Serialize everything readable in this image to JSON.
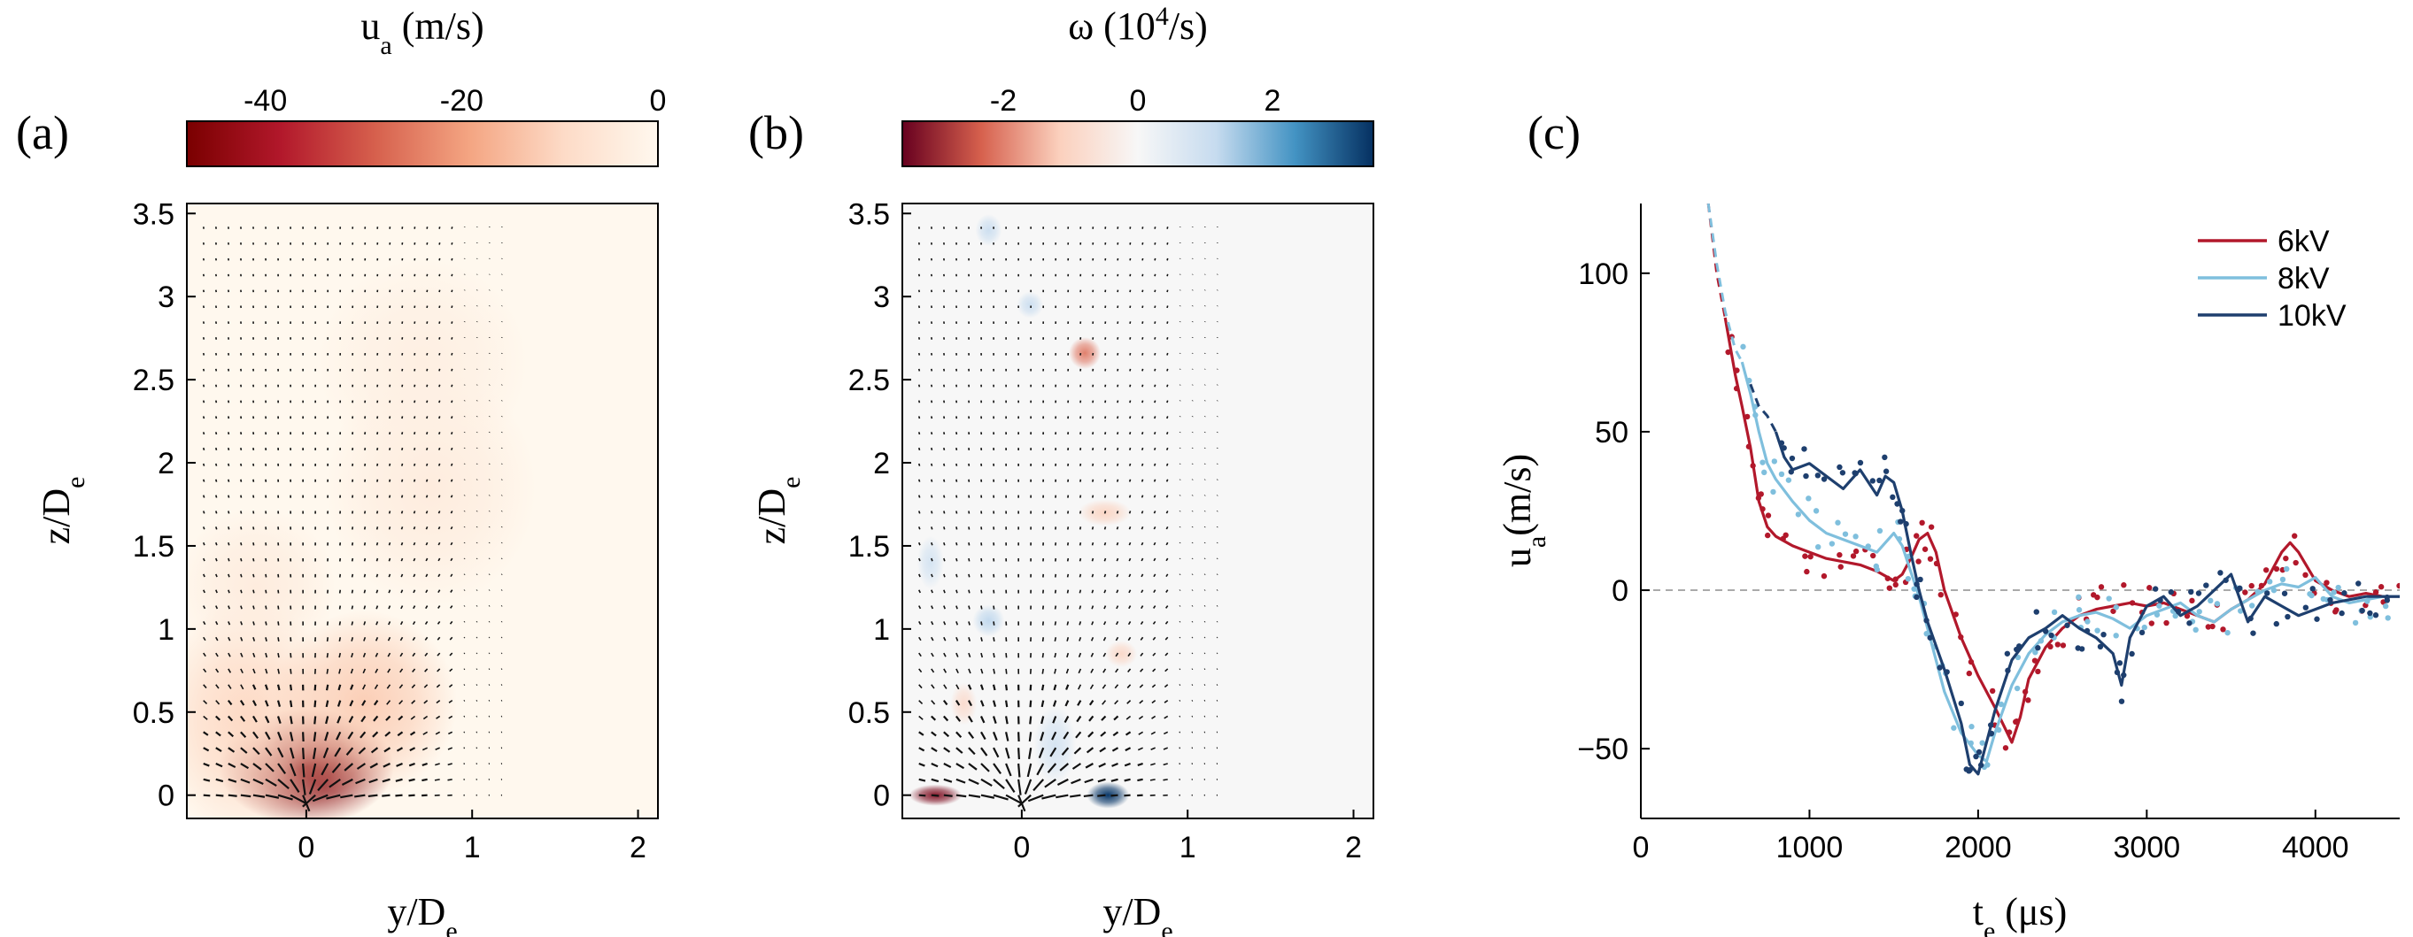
{
  "panel_labels": [
    "(a)",
    "(b)",
    "(c)"
  ],
  "chart_data": [
    {
      "type": "heatmap",
      "panel": "(a)",
      "colorbar": {
        "label_main": "u",
        "label_sub": "a",
        "label_rest": " (m/s)",
        "ticks": [
          "-40",
          "-20",
          "0"
        ],
        "tick_values": [
          -40,
          -20,
          0
        ],
        "range": [
          -48,
          0
        ],
        "colors": [
          "#7a0000",
          "#b2182b",
          "#d6604d",
          "#f4a582",
          "#fddbc7",
          "#fff8ee"
        ]
      },
      "xaxis": {
        "label_main": "y/D",
        "label_sub": "e",
        "range": [
          -0.72,
          2.12
        ],
        "ticks": [
          0,
          1,
          2
        ],
        "tick_labels": [
          "0",
          "1",
          "2"
        ]
      },
      "yaxis": {
        "label_main": "z/D",
        "label_sub": "e",
        "range": [
          -0.14,
          3.56
        ],
        "ticks": [
          0,
          0.5,
          1,
          1.5,
          2,
          2.5,
          3,
          3.5
        ],
        "tick_labels": [
          "0",
          "0.5",
          "1",
          "1.5",
          "2",
          "2.5",
          "3",
          "3.5"
        ]
      },
      "blobs": [
        {
          "y": 0.0,
          "z": 0.17,
          "sy": 0.33,
          "sz": 0.22,
          "value": -46
        },
        {
          "y": -0.35,
          "z": 0.45,
          "sy": 0.35,
          "sz": 0.45,
          "value": -10
        },
        {
          "y": 0.35,
          "z": 0.55,
          "sy": 0.35,
          "sz": 0.35,
          "value": -12
        },
        {
          "y": -0.3,
          "z": 1.25,
          "sy": 0.3,
          "sz": 0.3,
          "value": -4
        },
        {
          "y": 0.75,
          "z": 1.85,
          "sy": 0.4,
          "sz": 0.45,
          "value": -4
        },
        {
          "y": 0.7,
          "z": 2.6,
          "sy": 0.4,
          "sz": 0.4,
          "value": -3
        }
      ],
      "vector_field": "induced flow, vectors converging toward origin"
    },
    {
      "type": "heatmap",
      "panel": "(b)",
      "colorbar": {
        "label_main": "ω (10",
        "label_sup": "4",
        "label_rest": "/s)",
        "ticks": [
          "-2",
          "0",
          "2"
        ],
        "tick_values": [
          -2,
          0,
          2
        ],
        "range": [
          -3.5,
          3.5
        ],
        "colors": [
          "#67001f",
          "#d6604d",
          "#fbd0bd",
          "#f7f7f7",
          "#c6dbef",
          "#4393c3",
          "#053061"
        ]
      },
      "xaxis": {
        "label_main": "y/D",
        "label_sub": "e",
        "range": [
          -0.72,
          2.12
        ],
        "ticks": [
          0,
          1,
          2
        ],
        "tick_labels": [
          "0",
          "1",
          "2"
        ]
      },
      "yaxis": {
        "label_main": "z/D",
        "label_sub": "e",
        "range": [
          -0.14,
          3.56
        ],
        "ticks": [
          0,
          0.5,
          1,
          1.5,
          2,
          2.5,
          3,
          3.5
        ],
        "tick_labels": [
          "0",
          "0.5",
          "1",
          "1.5",
          "2",
          "2.5",
          "3",
          "3.5"
        ]
      },
      "blobs": [
        {
          "y": -0.52,
          "z": 0.0,
          "sy": 0.1,
          "sz": 0.04,
          "value": -3.2
        },
        {
          "y": 0.52,
          "z": 0.0,
          "sy": 0.08,
          "sz": 0.05,
          "value": 3.4
        },
        {
          "y": 0.38,
          "z": 2.66,
          "sy": 0.06,
          "sz": 0.06,
          "value": -2.0
        },
        {
          "y": -0.2,
          "z": 1.05,
          "sy": 0.06,
          "sz": 0.06,
          "value": 1.2
        },
        {
          "y": 0.5,
          "z": 1.7,
          "sy": 0.1,
          "sz": 0.05,
          "value": -1.0
        },
        {
          "y": -0.2,
          "z": 3.4,
          "sy": 0.05,
          "sz": 0.06,
          "value": 1.0
        },
        {
          "y": 0.05,
          "z": 2.95,
          "sy": 0.05,
          "sz": 0.05,
          "value": 1.0
        },
        {
          "y": -0.55,
          "z": 1.4,
          "sy": 0.05,
          "sz": 0.1,
          "value": 0.8
        },
        {
          "y": 0.2,
          "z": 0.3,
          "sy": 0.08,
          "sz": 0.15,
          "value": 0.8
        },
        {
          "y": -0.35,
          "z": 0.55,
          "sy": 0.05,
          "sz": 0.08,
          "value": -0.8
        },
        {
          "y": 0.6,
          "z": 0.85,
          "sy": 0.06,
          "sz": 0.05,
          "value": -0.9
        }
      ],
      "vector_field": "induced flow, vectors converging toward origin"
    },
    {
      "type": "line",
      "panel": "(c)",
      "xaxis": {
        "label_main": "t",
        "label_sub": "e",
        "label_rest": " (μs)",
        "range": [
          0,
          4500
        ],
        "ticks": [
          0,
          1000,
          2000,
          3000,
          4000
        ],
        "tick_labels": [
          "0",
          "1000",
          "2000",
          "3000",
          "4000"
        ]
      },
      "yaxis": {
        "label_main": "u",
        "label_sub": "a",
        "label_rest": "(m/s)",
        "range": [
          -72,
          122
        ],
        "ticks": [
          -50,
          0,
          50,
          100
        ],
        "tick_labels": [
          "−50",
          "0",
          "50",
          "100"
        ]
      },
      "reference_line": 0,
      "series": [
        {
          "name": "6kV",
          "color": "#b2182b",
          "dashed": [
            [
              400,
              122
            ],
            [
              450,
              100
            ],
            [
              500,
              86
            ]
          ],
          "x": [
            500,
            560,
            600,
            650,
            700,
            750,
            800,
            900,
            1000,
            1100,
            1200,
            1300,
            1400,
            1500,
            1550,
            1600,
            1650,
            1700,
            1750,
            1800,
            1900,
            2000,
            2100,
            2200,
            2250,
            2300,
            2400,
            2500,
            2600,
            2700,
            2800,
            2900,
            3000,
            3100,
            3200,
            3300,
            3400,
            3500,
            3600,
            3700,
            3800,
            3850,
            3900,
            4000,
            4100,
            4200,
            4300,
            4400,
            4500
          ],
          "y": [
            86,
            68,
            58,
            45,
            28,
            20,
            17,
            14,
            12,
            10,
            9,
            8,
            6,
            3,
            5,
            10,
            16,
            18,
            12,
            0,
            -15,
            -27,
            -37,
            -48,
            -40,
            -28,
            -18,
            -12,
            -8,
            -6,
            -5,
            -4,
            -5,
            -4,
            -6,
            -8,
            -10,
            -6,
            -3,
            2,
            12,
            15,
            12,
            3,
            0,
            -2,
            -1,
            -2,
            -2
          ],
          "scatter_seed": 11
        },
        {
          "name": "8kV",
          "color": "#7fbfdd",
          "dashed": [
            [
              400,
              122
            ],
            [
              450,
              103
            ],
            [
              500,
              88
            ],
            [
              560,
              76
            ],
            [
              600,
              72
            ]
          ],
          "x": [
            600,
            650,
            700,
            750,
            800,
            900,
            1000,
            1100,
            1200,
            1300,
            1400,
            1500,
            1550,
            1600,
            1650,
            1700,
            1800,
            1900,
            2000,
            2050,
            2100,
            2200,
            2300,
            2400,
            2500,
            2600,
            2700,
            2800,
            2900,
            3000,
            3100,
            3200,
            3300,
            3400,
            3500,
            3600,
            3700,
            3800,
            3900,
            4000,
            4100,
            4200,
            4300,
            4400,
            4500
          ],
          "y": [
            72,
            62,
            50,
            40,
            35,
            28,
            22,
            18,
            16,
            14,
            12,
            18,
            14,
            6,
            -2,
            -12,
            -32,
            -45,
            -52,
            -54,
            -45,
            -30,
            -20,
            -14,
            -10,
            -8,
            -7,
            -9,
            -12,
            -8,
            -6,
            -4,
            -8,
            -10,
            -6,
            -3,
            0,
            2,
            1,
            4,
            -2,
            -4,
            -3,
            -2,
            -2
          ],
          "scatter_seed": 23
        },
        {
          "name": "10kV",
          "color": "#1e3f6e",
          "dashed": [
            [
              650,
              65
            ],
            [
              700,
              58
            ],
            [
              750,
              55
            ],
            [
              800,
              50
            ]
          ],
          "x": [
            800,
            850,
            900,
            1000,
            1100,
            1200,
            1300,
            1400,
            1450,
            1500,
            1550,
            1600,
            1650,
            1700,
            1800,
            1900,
            1950,
            2000,
            2050,
            2100,
            2200,
            2300,
            2400,
            2500,
            2600,
            2700,
            2800,
            2850,
            2900,
            3000,
            3100,
            3200,
            3300,
            3400,
            3500,
            3600,
            3700,
            3800,
            3900,
            4000,
            4100,
            4200,
            4300,
            4400,
            4500
          ],
          "y": [
            50,
            42,
            38,
            40,
            36,
            32,
            38,
            30,
            36,
            34,
            25,
            12,
            0,
            -10,
            -25,
            -42,
            -55,
            -58,
            -48,
            -38,
            -22,
            -15,
            -12,
            -8,
            -12,
            -15,
            -20,
            -30,
            -15,
            -5,
            -2,
            -8,
            -5,
            0,
            5,
            -10,
            -2,
            -5,
            -8,
            -6,
            -4,
            -3,
            -2,
            -2,
            -2
          ],
          "scatter_seed": 37
        }
      ],
      "legend": {
        "position": "top-right",
        "entries": [
          "6kV",
          "8kV",
          "10kV"
        ]
      }
    }
  ]
}
